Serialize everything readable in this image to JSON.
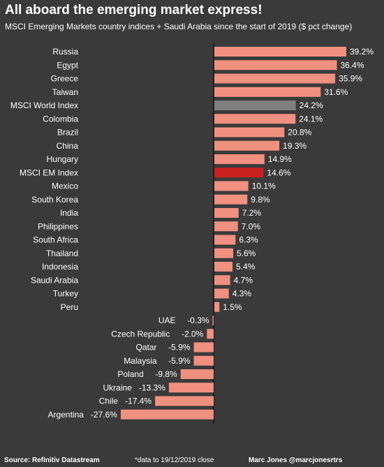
{
  "title": "All aboard the emerging market express!",
  "subtitle": "MSCI Emerging Markets country indices + Saudi Arabia since the start of 2019 ($ pct change)",
  "footer": {
    "source": "Source: Refinitiv Datastream",
    "note": "*data to 19/12/2019 close",
    "author": "Marc Jones @marcjonesrtrs"
  },
  "colors": {
    "background": "#3a3a3a",
    "bar": "#f0907f",
    "world_index": "#7f7f7f",
    "em_index": "#c8201f",
    "axis": "#000000"
  },
  "chart_data": {
    "type": "bar",
    "orientation": "horizontal",
    "categories": [
      "Russia",
      "Egypt",
      "Greece",
      "Taiwan",
      "MSCI World Index",
      "Colombia",
      "Brazil",
      "China",
      "Hungary",
      "MSCI EM Index",
      "Mexico",
      "South Korea",
      "India",
      "Philippines",
      "South Africa",
      "Thailand",
      "Indonesia",
      "Saudi Arabia",
      "Turkey",
      "Peru",
      "UAE",
      "Czech Republic",
      "Qatar",
      "Malaysia",
      "Poland",
      "Ukraine",
      "Chile",
      "Argentina"
    ],
    "values": [
      39.2,
      36.4,
      35.9,
      31.6,
      24.2,
      24.1,
      20.8,
      19.3,
      14.9,
      14.6,
      10.1,
      9.8,
      7.2,
      7.0,
      6.3,
      5.6,
      5.4,
      4.7,
      4.3,
      1.5,
      -0.3,
      -2.0,
      -5.9,
      -5.9,
      -9.8,
      -13.3,
      -17.4,
      -27.6
    ],
    "value_labels": [
      "39.2%",
      "36.4%",
      "35.9%",
      "31.6%",
      "24.2%",
      "24.1%",
      "20.8%",
      "19.3%",
      "14.9%",
      "14.6%",
      "10.1%",
      "9.8%",
      "7.2%",
      "7.0%",
      "6.3%",
      "5.6%",
      "5.4%",
      "4.7%",
      "4.3%",
      "1.5%",
      "-0.3%",
      "-2.0%",
      "-5.9%",
      "-5.9%",
      "-9.8%",
      "-13.3%",
      "-17.4%",
      "-27.6%"
    ],
    "highlight": {
      "MSCI World Index": "world_index",
      "MSCI EM Index": "em_index"
    },
    "xlim": [
      -30,
      42
    ],
    "grid": false,
    "legend": "none"
  }
}
